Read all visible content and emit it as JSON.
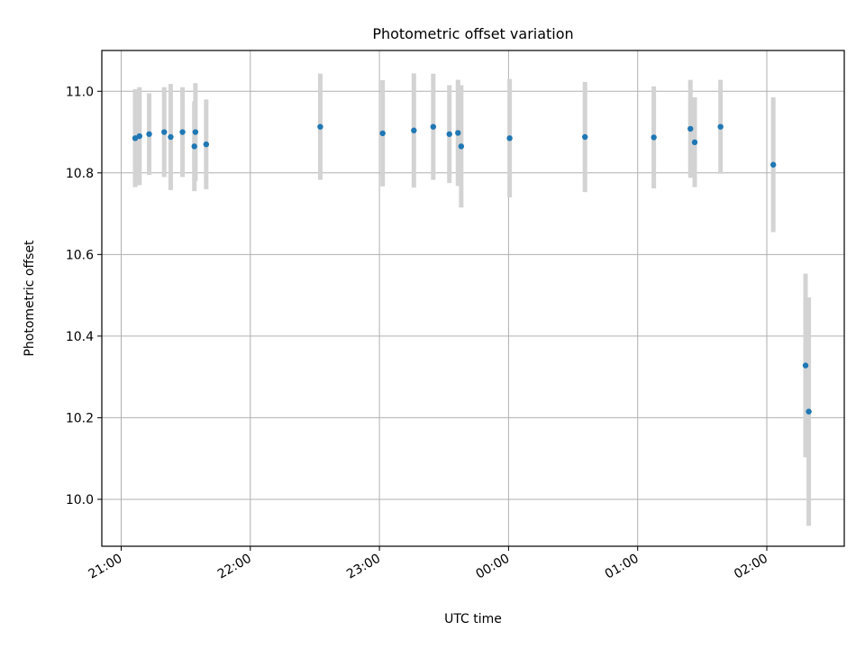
{
  "chart_data": {
    "type": "scatter",
    "title": "Photometric offset variation",
    "xlabel": "UTC time",
    "ylabel": "Photometric offset",
    "x_axis": "time",
    "xlim_hours": [
      20.85,
      26.6
    ],
    "ylim": [
      9.885,
      11.1
    ],
    "grid": true,
    "legend": "none",
    "x_ticks": [
      {
        "hour": 21,
        "label": "21:00"
      },
      {
        "hour": 22,
        "label": "22:00"
      },
      {
        "hour": 23,
        "label": "23:00"
      },
      {
        "hour": 24,
        "label": "00:00"
      },
      {
        "hour": 25,
        "label": "01:00"
      },
      {
        "hour": 26,
        "label": "02:00"
      }
    ],
    "y_ticks": [
      {
        "value": 10.0,
        "label": "10.0"
      },
      {
        "value": 10.2,
        "label": "10.2"
      },
      {
        "value": 10.4,
        "label": "10.4"
      },
      {
        "value": 10.6,
        "label": "10.6"
      },
      {
        "value": 10.8,
        "label": "10.8"
      },
      {
        "value": 11.0,
        "label": "11.0"
      }
    ],
    "colors": {
      "point": "#1f77b4",
      "errorbar": "#d3d3d3"
    },
    "points": [
      {
        "time": "21:06:30",
        "y": 10.885,
        "err": 0.12
      },
      {
        "time": "21:08:30",
        "y": 10.89,
        "err": 0.12
      },
      {
        "time": "21:13:00",
        "y": 10.895,
        "err": 0.1
      },
      {
        "time": "21:20:00",
        "y": 10.9,
        "err": 0.11
      },
      {
        "time": "21:23:00",
        "y": 10.888,
        "err": 0.13
      },
      {
        "time": "21:28:30",
        "y": 10.9,
        "err": 0.11
      },
      {
        "time": "21:34:00",
        "y": 10.865,
        "err": 0.11
      },
      {
        "time": "21:34:30",
        "y": 10.9,
        "err": 0.12
      },
      {
        "time": "21:39:30",
        "y": 10.87,
        "err": 0.11
      },
      {
        "time": "22:32:30",
        "y": 10.913,
        "err": 0.13
      },
      {
        "time": "23:01:30",
        "y": 10.897,
        "err": 0.13
      },
      {
        "time": "23:16:00",
        "y": 10.904,
        "err": 0.14
      },
      {
        "time": "23:25:00",
        "y": 10.913,
        "err": 0.13
      },
      {
        "time": "23:32:30",
        "y": 10.895,
        "err": 0.12
      },
      {
        "time": "23:36:30",
        "y": 10.898,
        "err": 0.13
      },
      {
        "time": "23:38:00",
        "y": 10.865,
        "err": 0.15
      },
      {
        "time": "00:00:30",
        "y": 10.885,
        "err": 0.145
      },
      {
        "time": "00:35:30",
        "y": 10.888,
        "err": 0.135
      },
      {
        "time": "01:07:30",
        "y": 10.887,
        "err": 0.125
      },
      {
        "time": "01:24:30",
        "y": 10.908,
        "err": 0.12
      },
      {
        "time": "01:26:30",
        "y": 10.875,
        "err": 0.11
      },
      {
        "time": "01:38:30",
        "y": 10.913,
        "err": 0.115
      },
      {
        "time": "02:03:00",
        "y": 10.82,
        "err": 0.165
      },
      {
        "time": "02:18:00",
        "y": 10.328,
        "err": 0.225
      },
      {
        "time": "02:19:30",
        "y": 10.215,
        "err": 0.28
      }
    ]
  }
}
